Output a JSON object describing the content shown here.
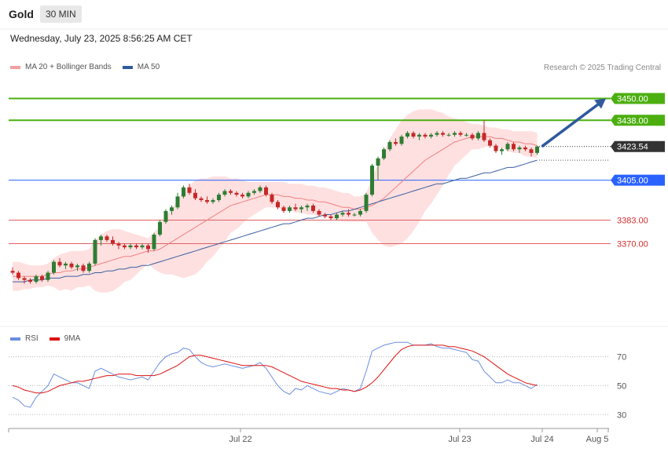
{
  "header": {
    "title": "Gold",
    "timeframe": "30 MIN",
    "datetime": "Wednesday, July 23, 2025 8:56:25 AM CET"
  },
  "legend": {
    "ma20": "MA 20 + Bollinger Bands",
    "ma50": "MA 50",
    "rsi": "RSI",
    "rsi_ma": "9MA"
  },
  "credit": "Research © 2025 Trading Central",
  "colors": {
    "up": "#2e7d32",
    "down": "#c62828",
    "ma20": "#f08080",
    "band": "#ffd6d6",
    "ma50": "#3a5fa0",
    "resistance": "#4caf10",
    "support_blue": "#2962ff",
    "support_red": "#e06060",
    "arrow": "#2f5a9e",
    "rsi": "#6a8ee0",
    "rsi_ma": "#dd1111"
  },
  "chart_data": [
    {
      "type": "candlestick",
      "ylim": [
        3330,
        3458
      ],
      "x_ticks": [
        "Jul 22",
        "Jul 23",
        "Jul 24",
        "Aug 5"
      ],
      "levels": [
        {
          "label": "3450.00",
          "value": 3450.0,
          "style": "resistance"
        },
        {
          "label": "3438.00",
          "value": 3438.0,
          "style": "resistance"
        },
        {
          "label": "3423.54",
          "value": 3423.54,
          "style": "last"
        },
        {
          "label": "3405.00",
          "value": 3405.0,
          "style": "support_blue"
        },
        {
          "label": "3383.00",
          "value": 3383.0,
          "style": "support_red"
        },
        {
          "label": "3370.00",
          "value": 3370.0,
          "style": "support_red"
        }
      ],
      "ohlc": [
        [
          3355,
          3357,
          3353,
          3354
        ],
        [
          3354,
          3355,
          3350,
          3351
        ],
        [
          3351,
          3352,
          3348,
          3350
        ],
        [
          3350,
          3351,
          3348,
          3349
        ],
        [
          3349,
          3353,
          3348,
          3352
        ],
        [
          3352,
          3353,
          3349,
          3350
        ],
        [
          3350,
          3355,
          3349,
          3354
        ],
        [
          3354,
          3361,
          3353,
          3360
        ],
        [
          3360,
          3362,
          3357,
          3358
        ],
        [
          3358,
          3360,
          3356,
          3359
        ],
        [
          3359,
          3360,
          3356,
          3357
        ],
        [
          3357,
          3359,
          3355,
          3358
        ],
        [
          3358,
          3359,
          3354,
          3355
        ],
        [
          3355,
          3360,
          3354,
          3359
        ],
        [
          3359,
          3373,
          3358,
          3372
        ],
        [
          3372,
          3375,
          3369,
          3374
        ],
        [
          3374,
          3375,
          3371,
          3372
        ],
        [
          3372,
          3374,
          3369,
          3370
        ],
        [
          3370,
          3371,
          3367,
          3369
        ],
        [
          3369,
          3370,
          3367,
          3368
        ],
        [
          3368,
          3370,
          3367,
          3369
        ],
        [
          3369,
          3370,
          3367,
          3368
        ],
        [
          3368,
          3370,
          3367,
          3369
        ],
        [
          3369,
          3370,
          3365,
          3367
        ],
        [
          3367,
          3376,
          3366,
          3375
        ],
        [
          3375,
          3383,
          3374,
          3382
        ],
        [
          3382,
          3389,
          3381,
          3388
        ],
        [
          3388,
          3391,
          3386,
          3390
        ],
        [
          3390,
          3398,
          3389,
          3396
        ],
        [
          3396,
          3402,
          3395,
          3401
        ],
        [
          3401,
          3403,
          3397,
          3398
        ],
        [
          3398,
          3400,
          3394,
          3395
        ],
        [
          3395,
          3396,
          3393,
          3394
        ],
        [
          3394,
          3396,
          3392,
          3393
        ],
        [
          3393,
          3395,
          3392,
          3394
        ],
        [
          3394,
          3398,
          3393,
          3397
        ],
        [
          3397,
          3400,
          3396,
          3399
        ],
        [
          3399,
          3400,
          3397,
          3398
        ],
        [
          3398,
          3399,
          3396,
          3397
        ],
        [
          3397,
          3398,
          3395,
          3396
        ],
        [
          3396,
          3399,
          3395,
          3398
        ],
        [
          3398,
          3400,
          3397,
          3399
        ],
        [
          3399,
          3402,
          3398,
          3401
        ],
        [
          3401,
          3402,
          3396,
          3397
        ],
        [
          3397,
          3398,
          3392,
          3393
        ],
        [
          3393,
          3394,
          3389,
          3390
        ],
        [
          3390,
          3391,
          3387,
          3388
        ],
        [
          3388,
          3391,
          3387,
          3390
        ],
        [
          3390,
          3392,
          3388,
          3389
        ],
        [
          3389,
          3391,
          3387,
          3390
        ],
        [
          3390,
          3392,
          3388,
          3391
        ],
        [
          3391,
          3392,
          3387,
          3388
        ],
        [
          3388,
          3389,
          3385,
          3386
        ],
        [
          3386,
          3387,
          3384,
          3385
        ],
        [
          3385,
          3386,
          3383,
          3384
        ],
        [
          3384,
          3387,
          3383,
          3386
        ],
        [
          3386,
          3388,
          3385,
          3387
        ],
        [
          3387,
          3389,
          3385,
          3386
        ],
        [
          3386,
          3387,
          3385,
          3386
        ],
        [
          3386,
          3389,
          3385,
          3388
        ],
        [
          3388,
          3398,
          3387,
          3397
        ],
        [
          3397,
          3414,
          3396,
          3413
        ],
        [
          3413,
          3418,
          3405,
          3417
        ],
        [
          3417,
          3423,
          3416,
          3422
        ],
        [
          3422,
          3427,
          3421,
          3426
        ],
        [
          3426,
          3428,
          3424,
          3425
        ],
        [
          3425,
          3430,
          3424,
          3429
        ],
        [
          3429,
          3432,
          3428,
          3431
        ],
        [
          3431,
          3432,
          3428,
          3429
        ],
        [
          3429,
          3431,
          3427,
          3430
        ],
        [
          3430,
          3431,
          3428,
          3429
        ],
        [
          3429,
          3431,
          3428,
          3430
        ],
        [
          3430,
          3432,
          3429,
          3431
        ],
        [
          3431,
          3432,
          3429,
          3430
        ],
        [
          3430,
          3431,
          3429,
          3430
        ],
        [
          3430,
          3432,
          3429,
          3431
        ],
        [
          3431,
          3432,
          3429,
          3430
        ],
        [
          3430,
          3431,
          3429,
          3430
        ],
        [
          3430,
          3431,
          3427,
          3428
        ],
        [
          3428,
          3432,
          3427,
          3431
        ],
        [
          3431,
          3438,
          3426,
          3427
        ],
        [
          3427,
          3428,
          3423,
          3424
        ],
        [
          3424,
          3425,
          3420,
          3421
        ],
        [
          3421,
          3423,
          3419,
          3422
        ],
        [
          3422,
          3426,
          3421,
          3425
        ],
        [
          3425,
          3426,
          3421,
          3422
        ],
        [
          3422,
          3424,
          3420,
          3423
        ],
        [
          3423,
          3424,
          3421,
          3422
        ],
        [
          3422,
          3423,
          3418,
          3420
        ],
        [
          3420,
          3424,
          3419,
          3423.54
        ]
      ],
      "ma20": [
        3352,
        3352,
        3352,
        3352,
        3352,
        3352,
        3353,
        3354,
        3354,
        3355,
        3355,
        3356,
        3356,
        3357,
        3358,
        3359,
        3360,
        3361,
        3362,
        3363,
        3363,
        3364,
        3365,
        3366,
        3366,
        3367,
        3369,
        3371,
        3373,
        3375,
        3377,
        3379,
        3381,
        3383,
        3385,
        3387,
        3389,
        3391,
        3392,
        3393,
        3394,
        3395,
        3396,
        3397,
        3397,
        3397,
        3396,
        3396,
        3395,
        3395,
        3394,
        3394,
        3393,
        3393,
        3392,
        3391,
        3390,
        3390,
        3389,
        3389,
        3390,
        3391,
        3393,
        3395,
        3398,
        3401,
        3404,
        3407,
        3410,
        3413,
        3416,
        3418,
        3420,
        3422,
        3424,
        3426,
        3427,
        3428,
        3429,
        3429,
        3429,
        3429,
        3428,
        3428,
        3427,
        3426,
        3426,
        3425,
        3425,
        3424
      ],
      "bb_upper": [
        3360,
        3360,
        3359,
        3358,
        3358,
        3358,
        3359,
        3362,
        3364,
        3365,
        3366,
        3366,
        3366,
        3367,
        3372,
        3375,
        3377,
        3378,
        3378,
        3377,
        3376,
        3375,
        3374,
        3373,
        3376,
        3380,
        3385,
        3389,
        3394,
        3399,
        3402,
        3405,
        3406,
        3406,
        3407,
        3407,
        3407,
        3406,
        3406,
        3405,
        3404,
        3404,
        3404,
        3404,
        3404,
        3404,
        3404,
        3403,
        3403,
        3403,
        3402,
        3402,
        3401,
        3401,
        3400,
        3399,
        3398,
        3398,
        3396,
        3396,
        3398,
        3406,
        3414,
        3421,
        3428,
        3433,
        3438,
        3441,
        3443,
        3444,
        3444,
        3444,
        3443,
        3442,
        3440,
        3439,
        3438,
        3437,
        3436,
        3436,
        3435,
        3434,
        3434,
        3433,
        3433,
        3432,
        3432,
        3432,
        3432,
        3431
      ],
      "bb_lower": [
        3344,
        3344,
        3345,
        3345,
        3346,
        3346,
        3347,
        3346,
        3344,
        3345,
        3344,
        3346,
        3346,
        3347,
        3344,
        3343,
        3343,
        3344,
        3346,
        3349,
        3350,
        3353,
        3356,
        3359,
        3356,
        3354,
        3353,
        3353,
        3352,
        3351,
        3352,
        3353,
        3356,
        3360,
        3363,
        3367,
        3371,
        3376,
        3378,
        3381,
        3384,
        3386,
        3388,
        3390,
        3390,
        3390,
        3388,
        3389,
        3387,
        3387,
        3386,
        3386,
        3385,
        3385,
        3384,
        3383,
        3382,
        3382,
        3382,
        3382,
        3382,
        3376,
        3372,
        3369,
        3368,
        3369,
        3370,
        3373,
        3377,
        3382,
        3388,
        3392,
        3397,
        3402,
        3408,
        3413,
        3416,
        3419,
        3422,
        3422,
        3423,
        3424,
        3422,
        3423,
        3421,
        3420,
        3420,
        3418,
        3418,
        3417
      ],
      "ma50": [
        3349,
        3349,
        3349,
        3350,
        3350,
        3350,
        3351,
        3351,
        3351,
        3352,
        3352,
        3352,
        3353,
        3353,
        3354,
        3354,
        3355,
        3355,
        3356,
        3356,
        3357,
        3357,
        3358,
        3358,
        3359,
        3360,
        3361,
        3362,
        3363,
        3364,
        3365,
        3366,
        3367,
        3368,
        3369,
        3370,
        3371,
        3372,
        3373,
        3374,
        3375,
        3376,
        3377,
        3378,
        3379,
        3380,
        3381,
        3381,
        3382,
        3383,
        3384,
        3384,
        3385,
        3386,
        3386,
        3387,
        3388,
        3388,
        3389,
        3390,
        3391,
        3392,
        3393,
        3394,
        3395,
        3396,
        3397,
        3398,
        3399,
        3400,
        3401,
        3402,
        3403,
        3403,
        3404,
        3405,
        3406,
        3406,
        3407,
        3408,
        3409,
        3409,
        3410,
        3411,
        3412,
        3412,
        3413,
        3414,
        3415,
        3416
      ],
      "projection": {
        "from": 3423.54,
        "to": 3450.0
      }
    },
    {
      "type": "line",
      "ylim": [
        22,
        85
      ],
      "y_ticks": [
        "70",
        "50",
        "30"
      ],
      "rsi": [
        42,
        40,
        36,
        35,
        42,
        46,
        50,
        58,
        56,
        54,
        52,
        52,
        50,
        48,
        60,
        62,
        60,
        58,
        56,
        55,
        54,
        55,
        56,
        54,
        60,
        66,
        70,
        72,
        73,
        76,
        75,
        70,
        66,
        64,
        63,
        64,
        65,
        64,
        63,
        62,
        63,
        64,
        66,
        62,
        56,
        50,
        46,
        44,
        48,
        47,
        50,
        48,
        46,
        45,
        44,
        46,
        48,
        47,
        46,
        48,
        60,
        74,
        76,
        78,
        79,
        80,
        80,
        80,
        78,
        78,
        78,
        79,
        77,
        76,
        76,
        75,
        74,
        73,
        68,
        67,
        60,
        56,
        52,
        52,
        54,
        52,
        52,
        50,
        48,
        51
      ],
      "rsi_ma": [
        50,
        49,
        47,
        46,
        45,
        45,
        46,
        48,
        50,
        51,
        52,
        53,
        53,
        54,
        55,
        56,
        57,
        57,
        58,
        58,
        58,
        57,
        57,
        57,
        57,
        58,
        60,
        62,
        64,
        67,
        70,
        71,
        71,
        70,
        69,
        68,
        67,
        66,
        65,
        64,
        64,
        64,
        64,
        64,
        63,
        61,
        59,
        57,
        55,
        53,
        52,
        51,
        50,
        49,
        48,
        48,
        47,
        47,
        46,
        47,
        49,
        52,
        56,
        61,
        66,
        71,
        75,
        77,
        78,
        78,
        78,
        78,
        78,
        78,
        77,
        77,
        76,
        75,
        74,
        72,
        70,
        67,
        64,
        61,
        58,
        56,
        54,
        52,
        51,
        50
      ]
    }
  ]
}
